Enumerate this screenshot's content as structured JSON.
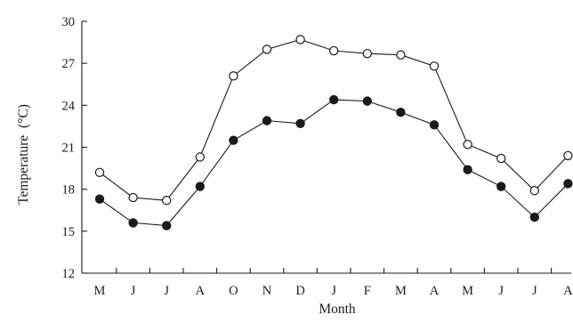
{
  "chart_data": {
    "type": "line",
    "title": "",
    "xlabel": "Month",
    "ylabel": "Temperature",
    "ylabel_unit": "(°C)",
    "categories": [
      "M",
      "J",
      "J",
      "A",
      "O",
      "N",
      "D",
      "J",
      "F",
      "M",
      "A",
      "M",
      "J",
      "J",
      "A"
    ],
    "ylim": [
      12,
      30
    ],
    "yticks": [
      12,
      15,
      18,
      21,
      24,
      27,
      30
    ],
    "grid": false,
    "legend": "none",
    "series": [
      {
        "marker": "open-circle",
        "color": "#1a1a1a",
        "values": [
          19.2,
          17.4,
          17.2,
          20.3,
          26.1,
          28.0,
          28.7,
          27.9,
          27.7,
          27.6,
          26.8,
          21.2,
          20.2,
          17.9,
          20.4
        ]
      },
      {
        "marker": "filled-circle",
        "color": "#1a1a1a",
        "values": [
          17.3,
          15.6,
          15.4,
          18.2,
          21.5,
          22.9,
          22.7,
          24.4,
          24.3,
          23.5,
          22.6,
          19.4,
          18.2,
          16.0,
          18.4
        ]
      }
    ]
  }
}
